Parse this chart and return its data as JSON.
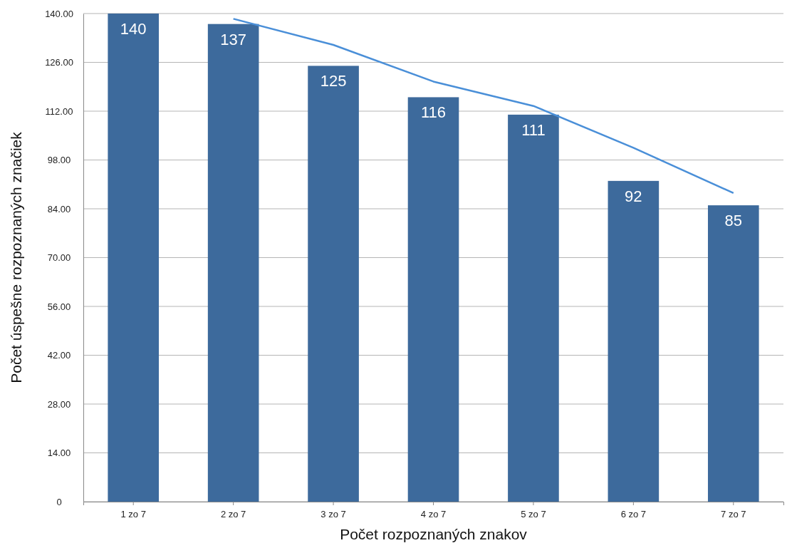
{
  "chart_data": {
    "type": "bar",
    "xlabel": "Počet rozpoznaných znakov",
    "ylabel": "Počet úspešne rozpoznaných značiek",
    "categories": [
      "1 zo 7",
      "2 zo 7",
      "3 zo 7",
      "4 zo 7",
      "5 zo 7",
      "6 zo 7",
      "7 zo 7"
    ],
    "series": [
      {
        "color": "#3d6a9c",
        "values": [
          140,
          137,
          125,
          116,
          111,
          92,
          85
        ],
        "value_labels": [
          "140",
          "137",
          "125",
          "116",
          "111",
          "92",
          "85"
        ]
      },
      {
        "type": "line",
        "color": "#4a8fd8",
        "values": [
          null,
          138.5,
          131,
          120.5,
          113.5,
          101.5,
          88.5
        ]
      }
    ],
    "ylim": [
      0,
      140
    ],
    "yticks": [
      0,
      {
        "value": 14,
        "label": "14.00"
      },
      {
        "value": 28,
        "label": "28.00"
      },
      {
        "value": 42,
        "label": "42.00"
      },
      {
        "value": 56,
        "label": "56.00"
      },
      {
        "value": 70,
        "label": "70.00"
      },
      {
        "value": 84,
        "label": "84.00"
      },
      {
        "value": 98,
        "label": "98.00"
      },
      {
        "value": 112,
        "label": "112.00"
      },
      {
        "value": 126,
        "label": "126.00"
      },
      {
        "value": 140,
        "label": "140.00"
      }
    ],
    "grid": "y",
    "marker": "none",
    "line_style": "solid"
  }
}
